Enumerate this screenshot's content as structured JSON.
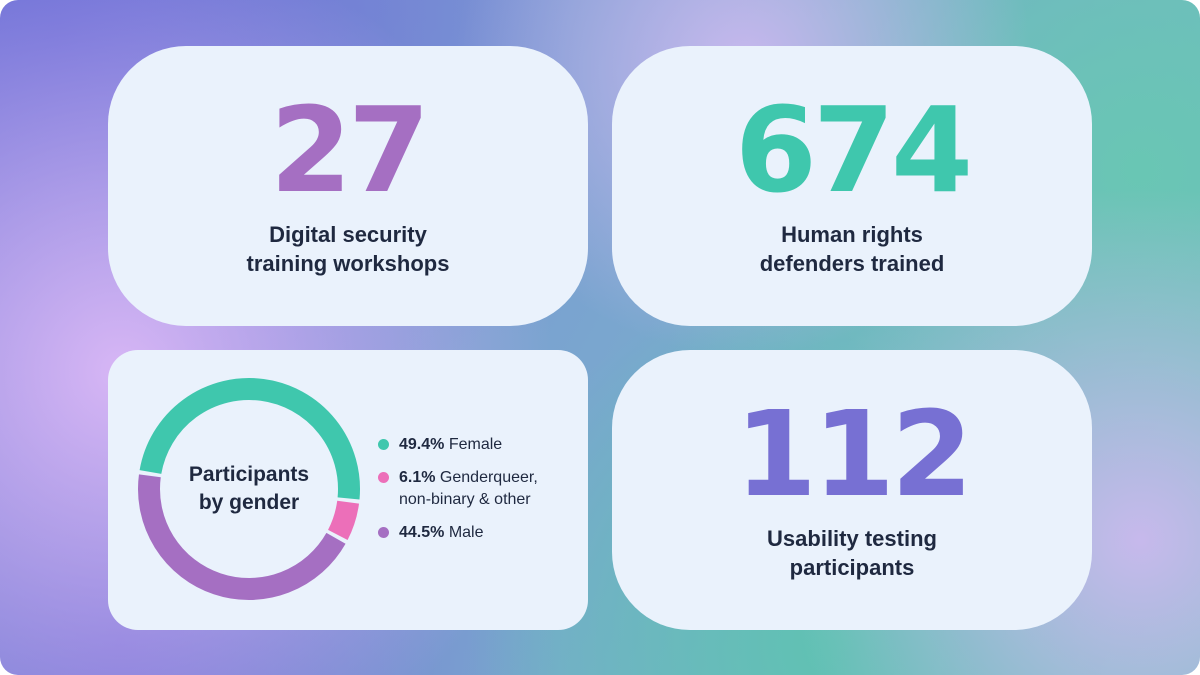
{
  "stats": [
    {
      "id": "workshops",
      "value": "27",
      "color": "#a56fc2",
      "label_lines": [
        "Digital security",
        "training workshops"
      ]
    },
    {
      "id": "defenders",
      "value": "674",
      "color": "#3fc7ad",
      "label_lines": [
        "Human rights",
        "defenders trained"
      ]
    },
    {
      "id": "usability",
      "value": "112",
      "color": "#7770d3",
      "label_lines": [
        "Usability testing",
        "participants"
      ]
    }
  ],
  "chart_data": {
    "type": "pie",
    "title_lines": [
      "Participants",
      "by gender"
    ],
    "series": [
      {
        "name": "Female",
        "value": 49.4,
        "value_label": "49.4%",
        "name_lines": [
          "Female"
        ],
        "color": "#3fc7ad"
      },
      {
        "name": "Genderqueer, non-binary & other",
        "value": 6.1,
        "value_label": "6.1%",
        "name_lines": [
          "Genderqueer,",
          "non-binary & other"
        ],
        "color": "#ec6fb9"
      },
      {
        "name": "Male",
        "value": 44.5,
        "value_label": "44.5%",
        "name_lines": [
          "Male"
        ],
        "color": "#a56fc2"
      }
    ],
    "legend_position": "right"
  }
}
